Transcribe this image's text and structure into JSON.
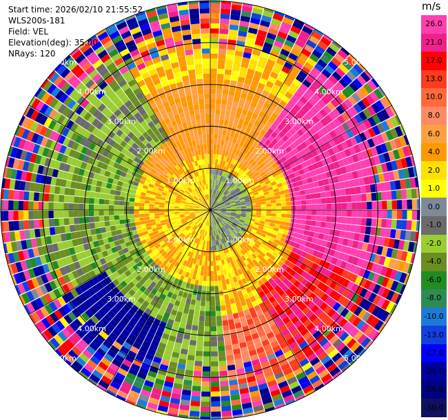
{
  "info": {
    "start_time": "Start time: 2026/02/10 21:55:52",
    "station": "WLS200s-181",
    "field": "Field: VEL",
    "elevation": "Elevation(deg): 35.00",
    "nrays": "NRays: 120"
  },
  "colorbar": {
    "unit": "m/s",
    "ticks": [
      "26.0",
      "21.0",
      "17.0",
      "13.0",
      "10.0",
      "8.0",
      "6.0",
      "4.0",
      "2.0",
      "1.0",
      "0.0",
      "-1.0",
      "-2.0",
      "-4.0",
      "-6.0",
      "-8.0",
      "-10.0",
      "-13.0",
      "-17.0",
      "-21.0",
      "-26.0",
      "-30.0"
    ],
    "colors": [
      "#ff3fb0",
      "#f2208a",
      "#ff0000",
      "#ff3b1f",
      "#ff6a3d",
      "#ff8a64",
      "#ffa040",
      "#ff9900",
      "#ffe000",
      "#ffff00",
      "#7f8a99",
      "#6b6b6b",
      "#9acd32",
      "#6b8e23",
      "#228b22",
      "#2e8b57",
      "#1e7ad8",
      "#1040e0",
      "#0000ff",
      "#0000a0",
      "#000080",
      "#101060"
    ]
  },
  "chart_data": {
    "type": "heatmap",
    "title": "",
    "field": "VEL",
    "unit": "m/s",
    "elevation_deg": 35.0,
    "nrays": 120,
    "range_rings_km": [
      1.0,
      2.0,
      3.0,
      4.0,
      5.0
    ],
    "range_labels": [
      "1.00km",
      "2.00km",
      "3.00km",
      "4.00km",
      "5.00km"
    ],
    "colorbar_range": [
      -30.0,
      26.0
    ],
    "approx_pattern": [
      {
        "region": "center (<1 km)",
        "values": "-2 to 2 m/s, gray and yellow-green"
      },
      {
        "region": "north ring 1-3 km",
        "values": "2 to 6 m/s, yellow/orange"
      },
      {
        "region": "east sector 2-3.5 km",
        "values": "21 to 26 m/s, pink/red"
      },
      {
        "region": "southeast sector 2.5-3.5 km",
        "values": "13 to 21 m/s, red/orange"
      },
      {
        "region": "south/southwest 2-3 km",
        "values": "-2 to -6 m/s, green"
      },
      {
        "region": "southwest 3-4 km",
        "values": "-21 to -30 m/s, navy"
      },
      {
        "region": "outer (>4 km)",
        "values": "noise, mixed colors"
      }
    ]
  }
}
